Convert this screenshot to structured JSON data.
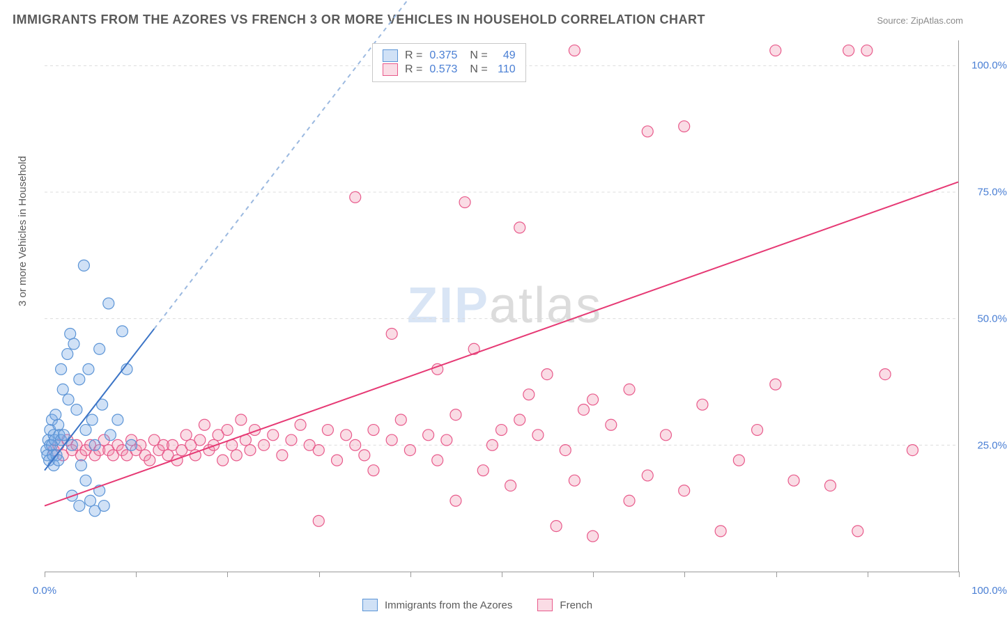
{
  "title": "IMMIGRANTS FROM THE AZORES VS FRENCH 3 OR MORE VEHICLES IN HOUSEHOLD CORRELATION CHART",
  "source": "Source: ZipAtlas.com",
  "y_axis_title": "3 or more Vehicles in Household",
  "watermark": {
    "part1": "ZIP",
    "part2": "atlas"
  },
  "chart": {
    "type": "scatter",
    "xlim": [
      0,
      100
    ],
    "ylim": [
      0,
      105
    ],
    "x_tick_labels": {
      "0": "0.0%",
      "100": "100.0%"
    },
    "x_minor_ticks": [
      0,
      10,
      20,
      30,
      40,
      50,
      60,
      70,
      80,
      90,
      100
    ],
    "y_ticks": [
      25,
      50,
      75,
      100
    ],
    "y_tick_labels": {
      "25": "25.0%",
      "50": "50.0%",
      "75": "75.0%",
      "100": "100.0%"
    },
    "grid_color": "#dcdcdc",
    "background_color": "#ffffff",
    "series": [
      {
        "name": "Immigrants from the Azores",
        "short": "azores",
        "marker_color_fill": "rgba(120,170,230,0.35)",
        "marker_color_stroke": "#5b94d6",
        "line_color": "#3b74c6",
        "line_dash_color": "#9bb9e0",
        "r_value": "0.375",
        "n_value": "49",
        "trend_solid": {
          "x1": 0,
          "y1": 20,
          "x2": 12,
          "y2": 48
        },
        "trend_dash": {
          "x1": 12,
          "y1": 48,
          "x2": 47,
          "y2": 130
        },
        "points": [
          [
            0.2,
            24
          ],
          [
            0.3,
            23
          ],
          [
            0.4,
            26
          ],
          [
            0.5,
            22
          ],
          [
            0.6,
            25
          ],
          [
            0.6,
            28
          ],
          [
            0.8,
            25
          ],
          [
            0.8,
            30
          ],
          [
            0.9,
            23
          ],
          [
            1.0,
            27
          ],
          [
            1.0,
            21
          ],
          [
            1.1,
            26
          ],
          [
            1.2,
            31
          ],
          [
            1.3,
            23
          ],
          [
            1.5,
            29
          ],
          [
            1.5,
            22
          ],
          [
            1.6,
            27
          ],
          [
            1.8,
            26
          ],
          [
            1.8,
            40
          ],
          [
            2.0,
            36
          ],
          [
            2.1,
            27
          ],
          [
            2.5,
            43
          ],
          [
            2.6,
            34
          ],
          [
            2.8,
            47
          ],
          [
            3.0,
            25
          ],
          [
            3.2,
            45
          ],
          [
            3.5,
            32
          ],
          [
            3.8,
            38
          ],
          [
            4.0,
            21
          ],
          [
            4.3,
            60.5
          ],
          [
            4.5,
            28
          ],
          [
            4.8,
            40
          ],
          [
            5.2,
            30
          ],
          [
            5.5,
            25
          ],
          [
            6.0,
            44
          ],
          [
            6.3,
            33
          ],
          [
            7.0,
            53
          ],
          [
            7.2,
            27
          ],
          [
            8.0,
            30
          ],
          [
            8.5,
            47.5
          ],
          [
            9.0,
            40
          ],
          [
            9.5,
            25
          ],
          [
            3.0,
            15
          ],
          [
            3.8,
            13
          ],
          [
            4.5,
            18
          ],
          [
            5.0,
            14
          ],
          [
            5.5,
            12
          ],
          [
            6.0,
            16
          ],
          [
            6.5,
            13
          ]
        ]
      },
      {
        "name": "French",
        "short": "french",
        "marker_color_fill": "rgba(240,140,170,0.30)",
        "marker_color_stroke": "#e85a8b",
        "line_color": "#e63974",
        "line_dash_color": "#f0a8c0",
        "r_value": "0.573",
        "n_value": "110",
        "trend_solid": {
          "x1": 0,
          "y1": 13,
          "x2": 100,
          "y2": 77
        },
        "trend_dash": null,
        "points": [
          [
            1,
            24
          ],
          [
            1.5,
            25
          ],
          [
            2,
            23
          ],
          [
            2.5,
            26
          ],
          [
            3,
            24
          ],
          [
            3.5,
            25
          ],
          [
            4,
            23
          ],
          [
            4.5,
            24
          ],
          [
            5,
            25
          ],
          [
            5.5,
            23
          ],
          [
            6,
            24
          ],
          [
            6.5,
            26
          ],
          [
            7,
            24
          ],
          [
            7.5,
            23
          ],
          [
            8,
            25
          ],
          [
            8.5,
            24
          ],
          [
            9,
            23
          ],
          [
            9.5,
            26
          ],
          [
            10,
            24
          ],
          [
            10.5,
            25
          ],
          [
            11,
            23
          ],
          [
            11.5,
            22
          ],
          [
            12,
            26
          ],
          [
            12.5,
            24
          ],
          [
            13,
            25
          ],
          [
            13.5,
            23
          ],
          [
            14,
            25
          ],
          [
            14.5,
            22
          ],
          [
            15,
            24
          ],
          [
            15.5,
            27
          ],
          [
            16,
            25
          ],
          [
            16.5,
            23
          ],
          [
            17,
            26
          ],
          [
            17.5,
            29
          ],
          [
            18,
            24
          ],
          [
            18.5,
            25
          ],
          [
            19,
            27
          ],
          [
            19.5,
            22
          ],
          [
            20,
            28
          ],
          [
            20.5,
            25
          ],
          [
            21,
            23
          ],
          [
            21.5,
            30
          ],
          [
            22,
            26
          ],
          [
            22.5,
            24
          ],
          [
            23,
            28
          ],
          [
            24,
            25
          ],
          [
            25,
            27
          ],
          [
            26,
            23
          ],
          [
            27,
            26
          ],
          [
            28,
            29
          ],
          [
            29,
            25
          ],
          [
            30,
            24
          ],
          [
            31,
            28
          ],
          [
            32,
            22
          ],
          [
            33,
            27
          ],
          [
            34,
            25
          ],
          [
            35,
            23
          ],
          [
            36,
            28
          ],
          [
            38,
            26
          ],
          [
            39,
            30
          ],
          [
            40,
            24
          ],
          [
            42,
            27
          ],
          [
            43,
            22
          ],
          [
            44,
            26
          ],
          [
            45,
            31
          ],
          [
            46,
            73
          ],
          [
            43,
            40
          ],
          [
            47,
            44
          ],
          [
            38,
            47
          ],
          [
            49,
            25
          ],
          [
            50,
            28
          ],
          [
            51,
            17
          ],
          [
            52,
            30
          ],
          [
            53,
            35
          ],
          [
            54,
            27
          ],
          [
            55,
            39
          ],
          [
            56,
            9
          ],
          [
            57,
            24
          ],
          [
            58,
            18
          ],
          [
            59,
            32
          ],
          [
            60,
            34
          ],
          [
            62,
            29
          ],
          [
            64,
            36
          ],
          [
            66,
            19
          ],
          [
            68,
            27
          ],
          [
            70,
            16
          ],
          [
            72,
            33
          ],
          [
            74,
            8
          ],
          [
            76,
            22
          ],
          [
            78,
            28
          ],
          [
            80,
            37
          ],
          [
            82,
            18
          ],
          [
            86,
            17
          ],
          [
            89,
            8
          ],
          [
            92,
            39
          ],
          [
            95,
            24
          ],
          [
            66,
            87
          ],
          [
            70,
            88
          ],
          [
            80,
            103
          ],
          [
            88,
            103
          ],
          [
            90,
            103
          ],
          [
            58,
            103
          ],
          [
            52,
            68
          ],
          [
            34,
            74
          ],
          [
            30,
            10
          ],
          [
            36,
            20
          ],
          [
            45,
            14
          ],
          [
            48,
            20
          ],
          [
            60,
            7
          ],
          [
            64,
            14
          ]
        ]
      }
    ]
  },
  "legend_top": {
    "r_label": "R =",
    "n_label": "N =",
    "text_color_label": "#5a5a5a",
    "text_color_value": "#4a7fd4"
  },
  "bottom_legend_items": [
    "Immigrants from the Azores",
    "French"
  ]
}
